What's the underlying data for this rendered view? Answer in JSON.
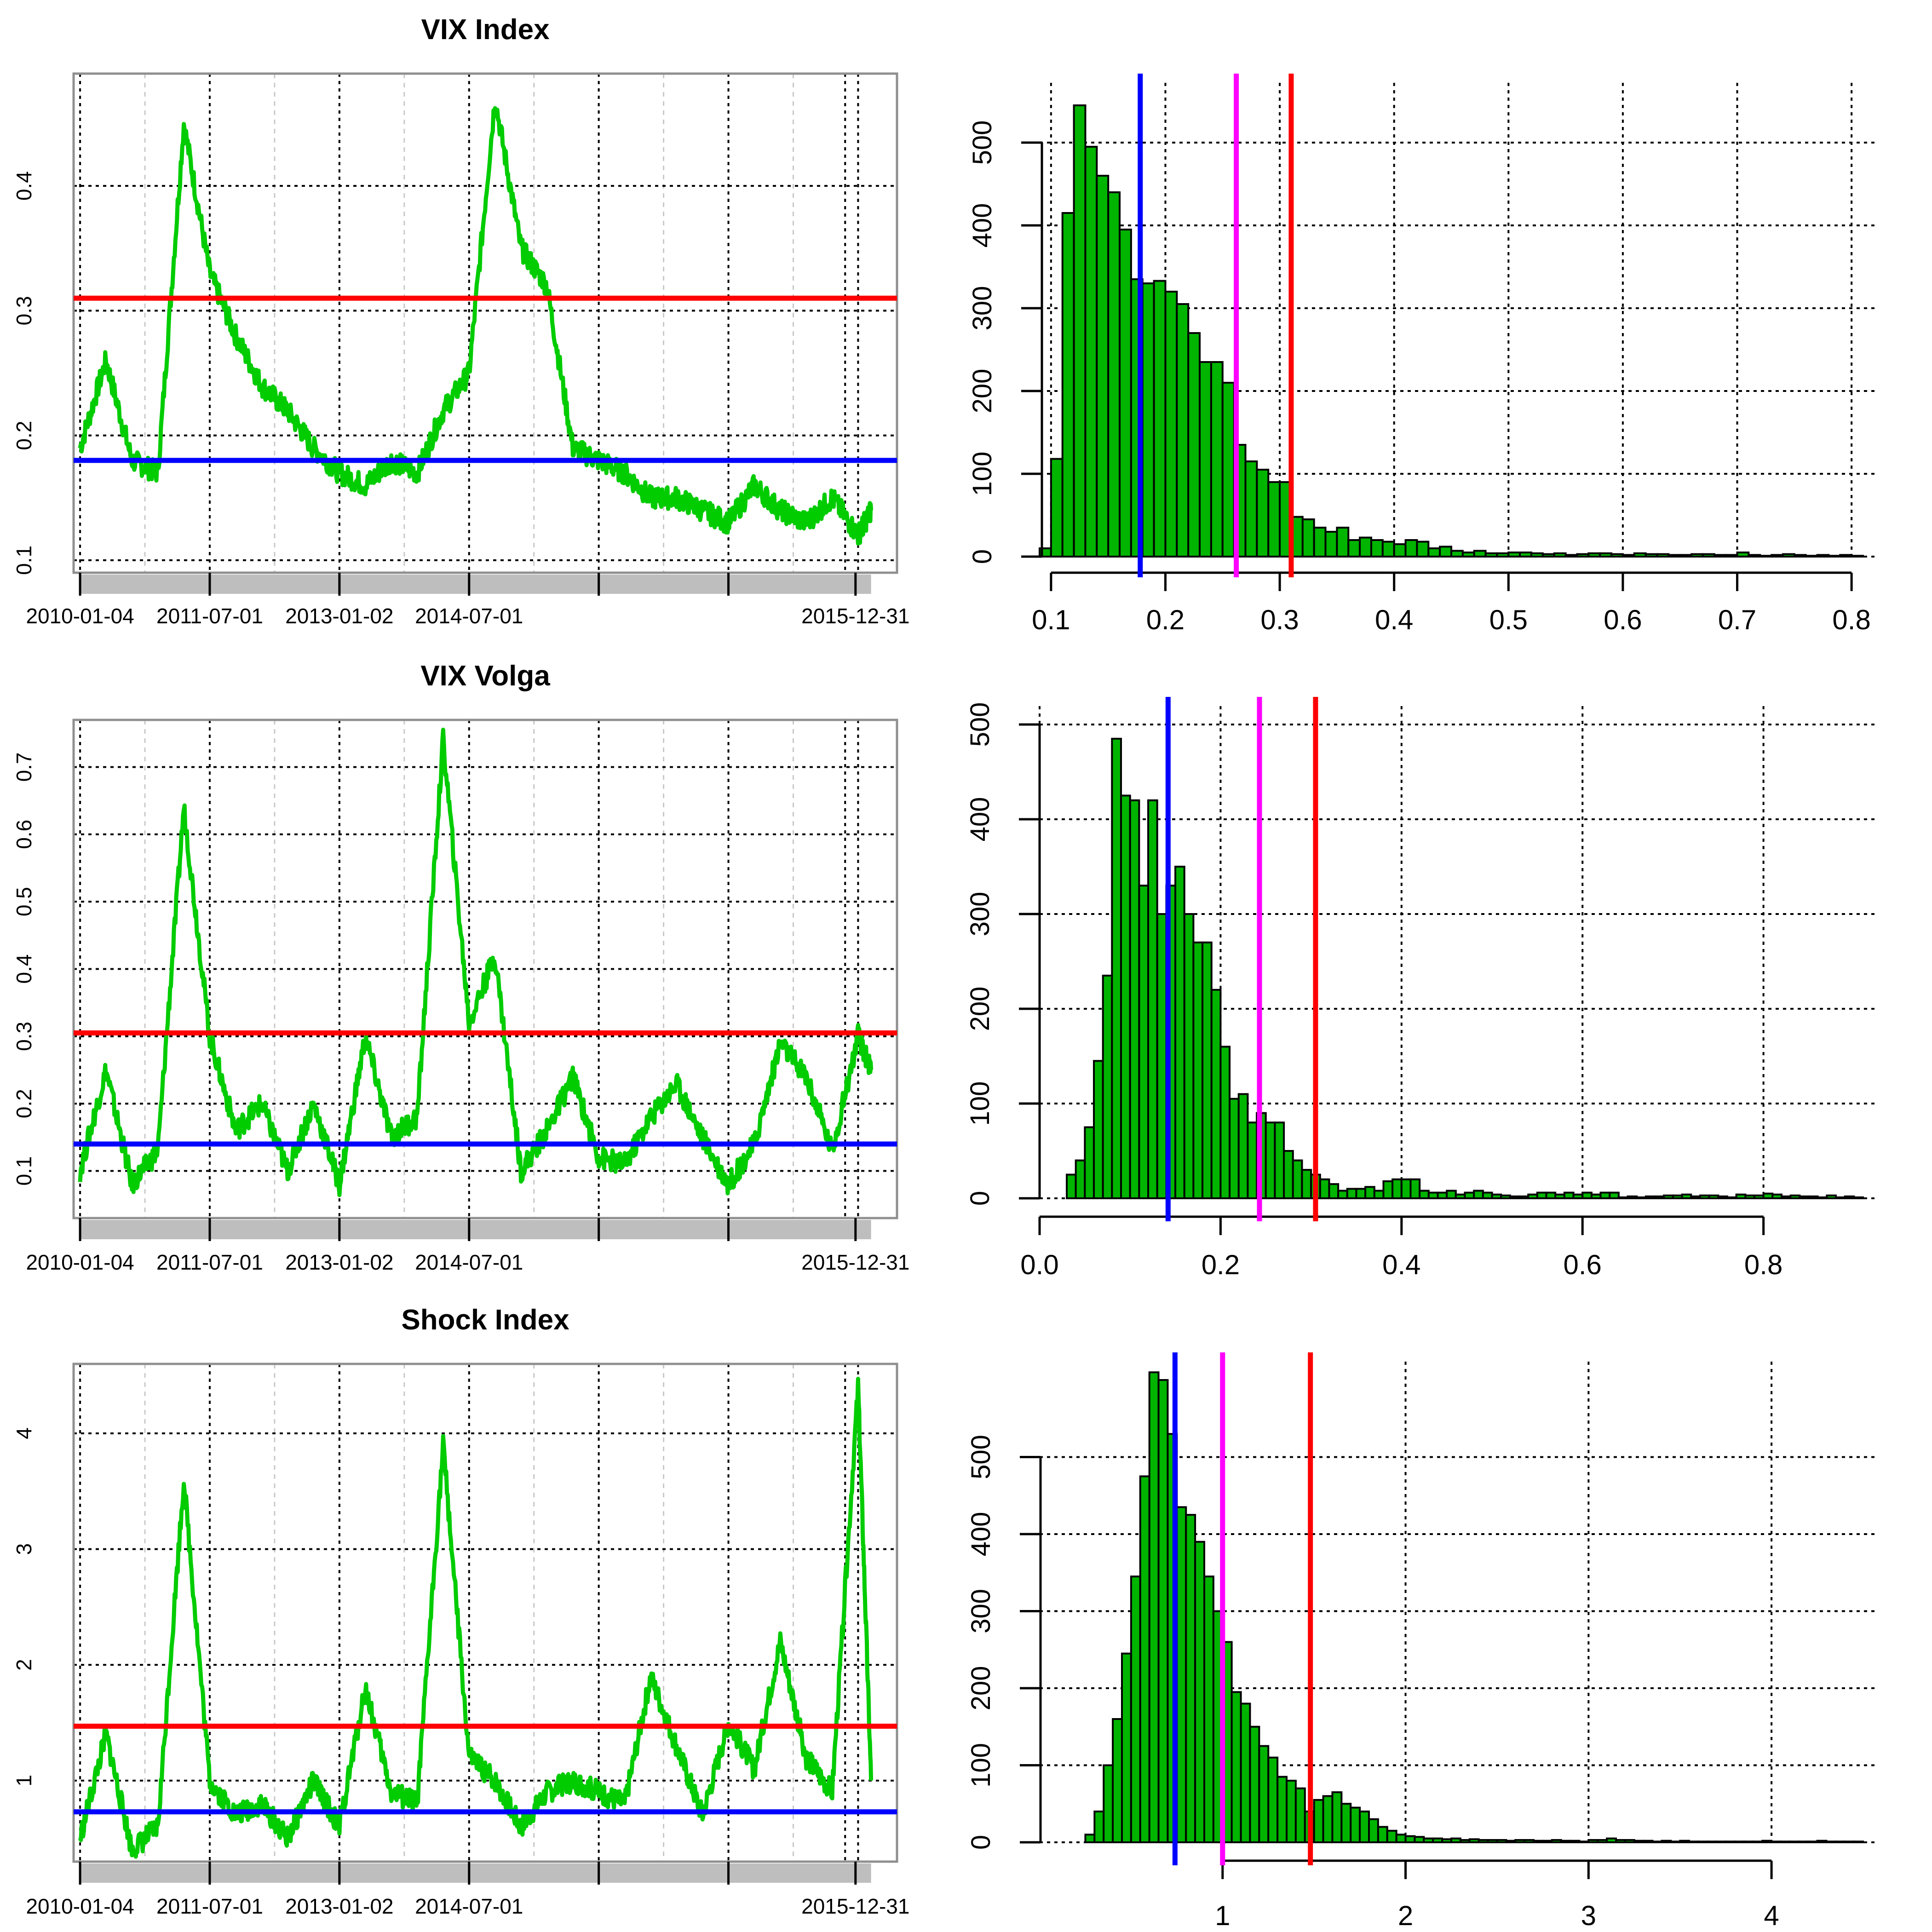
{
  "colors": {
    "series": "#00cc00",
    "hist_fill": "#00b400",
    "hist_edge": "#000000",
    "upper": "#ff0000",
    "lower": "#0000ff",
    "mid": "#ff00ff",
    "band": "#bebebe",
    "frame": "#8f8f8f"
  },
  "chart_data": [
    {
      "id": "vix-index-ts",
      "type": "line",
      "title": "VIX Index",
      "x_tick_labels": [
        "2010-01-04",
        "2011-07-01",
        "2013-01-02",
        "2014-07-01",
        "2015-12-31"
      ],
      "y_tick_labels": [
        "0.1",
        "0.2",
        "0.3",
        "0.4"
      ],
      "y_ticks": [
        0.1,
        0.2,
        0.3,
        0.4
      ],
      "ylim": [
        0.09,
        0.49
      ],
      "hlines": {
        "upper": 0.31,
        "lower": 0.18
      },
      "x": [
        0,
        0.2,
        0.4,
        0.6,
        0.8,
        1.0,
        1.2,
        1.4,
        1.6,
        1.8,
        2.0,
        2.2,
        2.4,
        2.6,
        2.8,
        3.0,
        3.2,
        3.4,
        3.6,
        3.8,
        4.0,
        4.2,
        4.4,
        4.6,
        4.8,
        5.0,
        5.2,
        5.4,
        5.6,
        5.8,
        6.0,
        6.1
      ],
      "values": [
        0.19,
        0.26,
        0.18,
        0.17,
        0.45,
        0.33,
        0.28,
        0.24,
        0.22,
        0.19,
        0.17,
        0.16,
        0.18,
        0.17,
        0.22,
        0.25,
        0.47,
        0.35,
        0.32,
        0.19,
        0.18,
        0.17,
        0.15,
        0.15,
        0.14,
        0.13,
        0.16,
        0.14,
        0.13,
        0.15,
        0.12,
        0.14
      ]
    },
    {
      "id": "vix-index-hist",
      "type": "bar",
      "title": "",
      "x_tick_labels": [
        "0.1",
        "0.2",
        "0.3",
        "0.4",
        "0.5",
        "0.6",
        "0.7",
        "0.8"
      ],
      "x_ticks": [
        0.1,
        0.2,
        0.3,
        0.4,
        0.5,
        0.6,
        0.7,
        0.8
      ],
      "y_tick_labels": [
        "0",
        "100",
        "200",
        "300",
        "400",
        "500"
      ],
      "y_ticks": [
        0,
        100,
        200,
        300,
        400,
        500
      ],
      "xlim": [
        0.09,
        0.81
      ],
      "ylim": [
        0,
        550
      ],
      "bin_start": 0.09,
      "bin_width": 0.01,
      "counts": [
        10,
        118,
        415,
        545,
        495,
        460,
        440,
        395,
        335,
        330,
        333,
        320,
        305,
        270,
        235,
        235,
        210,
        135,
        115,
        105,
        90,
        90,
        48,
        45,
        35,
        30,
        35,
        20,
        23,
        20,
        18,
        15,
        20,
        18,
        10,
        12,
        7,
        5,
        7,
        4,
        4,
        5,
        5,
        4,
        3,
        4,
        2,
        3,
        4,
        4,
        3,
        2,
        4,
        3,
        3,
        2,
        2,
        3,
        3,
        2,
        2,
        5,
        2,
        1,
        2,
        3,
        2,
        1,
        2,
        1,
        2,
        1
      ],
      "vlines": {
        "lower": 0.178,
        "mid": 0.262,
        "upper": 0.31
      }
    },
    {
      "id": "vix-volga-ts",
      "type": "line",
      "title": "VIX Volga",
      "x_tick_labels": [
        "2010-01-04",
        "2011-07-01",
        "2013-01-02",
        "2014-07-01",
        "2015-12-31"
      ],
      "y_tick_labels": [
        "0.1",
        "0.2",
        "0.3",
        "0.4",
        "0.5",
        "0.6",
        "0.7"
      ],
      "y_ticks": [
        0.1,
        0.2,
        0.3,
        0.4,
        0.5,
        0.6,
        0.7
      ],
      "ylim": [
        0.03,
        0.77
      ],
      "hlines": {
        "upper": 0.305,
        "lower": 0.14
      },
      "x": [
        0,
        0.2,
        0.4,
        0.6,
        0.8,
        1.0,
        1.2,
        1.4,
        1.6,
        1.8,
        2.0,
        2.2,
        2.4,
        2.6,
        2.8,
        3.0,
        3.2,
        3.4,
        3.6,
        3.8,
        4.0,
        4.2,
        4.4,
        4.6,
        4.8,
        5.0,
        5.2,
        5.4,
        5.6,
        5.8,
        6.0,
        6.1
      ],
      "values": [
        0.1,
        0.25,
        0.08,
        0.13,
        0.64,
        0.3,
        0.16,
        0.2,
        0.1,
        0.2,
        0.08,
        0.3,
        0.15,
        0.18,
        0.74,
        0.32,
        0.42,
        0.1,
        0.16,
        0.24,
        0.12,
        0.11,
        0.18,
        0.23,
        0.15,
        0.08,
        0.14,
        0.29,
        0.24,
        0.13,
        0.3,
        0.25
      ]
    },
    {
      "id": "vix-volga-hist",
      "type": "bar",
      "title": "",
      "x_tick_labels": [
        "0.0",
        "0.2",
        "0.4",
        "0.6",
        "0.8"
      ],
      "x_ticks": [
        0,
        0.2,
        0.4,
        0.6,
        0.8
      ],
      "y_tick_labels": [
        "0",
        "100",
        "200",
        "300",
        "400",
        "500"
      ],
      "y_ticks": [
        0,
        100,
        200,
        300,
        400,
        500
      ],
      "xlim": [
        0,
        0.91
      ],
      "ylim": [
        0,
        500
      ],
      "bin_start": 0.03,
      "bin_width": 0.01,
      "counts": [
        25,
        40,
        75,
        145,
        235,
        485,
        425,
        420,
        330,
        420,
        300,
        330,
        350,
        300,
        270,
        270,
        220,
        160,
        105,
        110,
        80,
        90,
        80,
        80,
        50,
        40,
        30,
        25,
        20,
        15,
        8,
        10,
        10,
        12,
        8,
        18,
        20,
        20,
        20,
        8,
        6,
        6,
        8,
        4,
        6,
        8,
        6,
        4,
        3,
        2,
        2,
        4,
        6,
        6,
        4,
        6,
        4,
        6,
        4,
        6,
        6,
        1,
        2,
        1,
        2,
        2,
        3,
        3,
        4,
        2,
        3,
        3,
        2,
        1,
        4,
        3,
        3,
        5,
        4,
        2,
        3,
        2,
        2,
        1,
        3,
        1,
        2,
        1,
        1,
        1
      ],
      "vlines": {
        "lower": 0.142,
        "mid": 0.243,
        "upper": 0.305
      }
    },
    {
      "id": "shock-index-ts",
      "type": "line",
      "title": "Shock Index",
      "x_tick_labels": [
        "2010-01-04",
        "2011-07-01",
        "2013-01-02",
        "2014-07-01",
        "2015-12-31"
      ],
      "y_tick_labels": [
        "1",
        "2",
        "3",
        "4"
      ],
      "y_ticks": [
        1,
        2,
        3,
        4
      ],
      "ylim": [
        0.3,
        4.6
      ],
      "hlines": {
        "upper": 1.47,
        "lower": 0.73
      },
      "x": [
        0,
        0.2,
        0.4,
        0.6,
        0.8,
        1.0,
        1.2,
        1.4,
        1.6,
        1.8,
        2.0,
        2.2,
        2.4,
        2.6,
        2.8,
        3.0,
        3.2,
        3.4,
        3.6,
        3.8,
        4.0,
        4.2,
        4.4,
        4.6,
        4.8,
        5.0,
        5.2,
        5.4,
        5.6,
        5.8,
        6.0,
        6.1
      ],
      "values": [
        0.5,
        1.4,
        0.4,
        0.6,
        3.6,
        1.0,
        0.7,
        0.8,
        0.5,
        1.0,
        0.6,
        1.8,
        0.9,
        0.8,
        3.9,
        1.2,
        1.0,
        0.6,
        0.9,
        1.0,
        0.9,
        0.8,
        1.9,
        1.3,
        0.7,
        1.5,
        1.1,
        2.2,
        1.2,
        0.9,
        4.4,
        1.0
      ]
    },
    {
      "id": "shock-index-hist",
      "type": "bar",
      "title": "",
      "x_tick_labels": [
        "1",
        "2",
        "3",
        "4"
      ],
      "x_ticks": [
        1,
        2,
        3,
        4
      ],
      "y_tick_labels": [
        "0",
        "100",
        "200",
        "300",
        "400",
        "500"
      ],
      "y_ticks": [
        0,
        100,
        200,
        300,
        400,
        500
      ],
      "xlim": [
        0,
        4.5
      ],
      "ylim": [
        0,
        600
      ],
      "bin_start": 0.25,
      "bin_width": 0.05,
      "counts": [
        10,
        40,
        100,
        160,
        245,
        345,
        475,
        610,
        600,
        530,
        435,
        425,
        390,
        345,
        300,
        260,
        195,
        180,
        150,
        125,
        110,
        85,
        80,
        70,
        40,
        55,
        60,
        65,
        50,
        45,
        40,
        30,
        20,
        15,
        10,
        8,
        7,
        5,
        5,
        4,
        5,
        3,
        4,
        3,
        3,
        3,
        2,
        3,
        3,
        2,
        2,
        3,
        2,
        2,
        1,
        3,
        3,
        5,
        3,
        3,
        2,
        2,
        1,
        2,
        1,
        2,
        1,
        1,
        1,
        1,
        1,
        1,
        1,
        1,
        2,
        1,
        1,
        1,
        1,
        1,
        2,
        1,
        1,
        1,
        1
      ],
      "vlines": {
        "lower": 0.74,
        "mid": 1.0,
        "upper": 1.48
      }
    }
  ]
}
